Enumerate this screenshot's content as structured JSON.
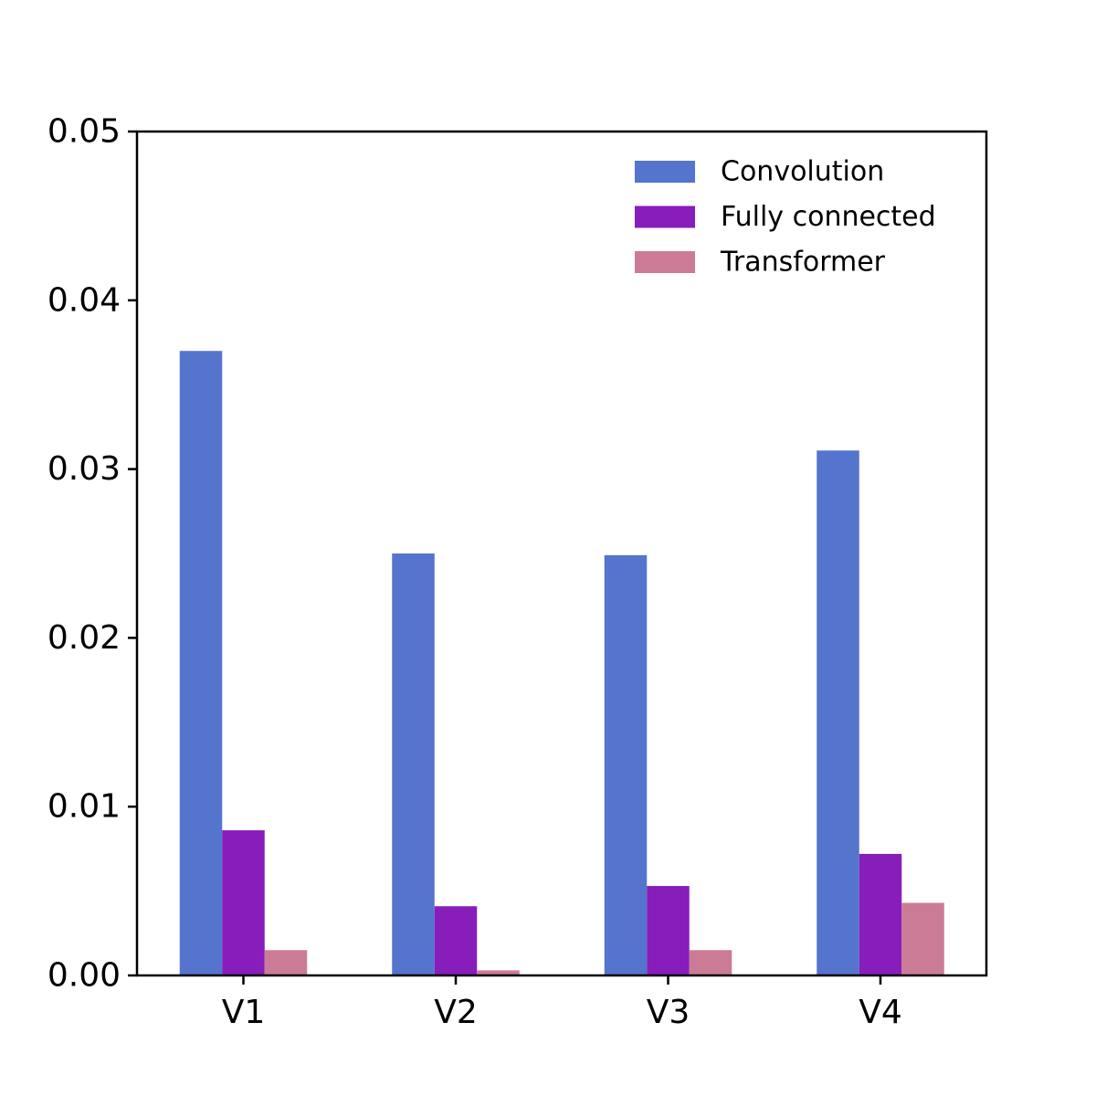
{
  "chart_data": {
    "type": "bar",
    "title": "",
    "xlabel": "",
    "ylabel": "",
    "categories": [
      "V1",
      "V2",
      "V3",
      "V4"
    ],
    "ylim": [
      0,
      0.05
    ],
    "yticks": [
      "0.00",
      "0.01",
      "0.02",
      "0.03",
      "0.04",
      "0.05"
    ],
    "grid": false,
    "legend_position": "top-right",
    "series": [
      {
        "name": "Convolution",
        "color": "#5574cd",
        "values": [
          0.037,
          0.025,
          0.0249,
          0.0311
        ]
      },
      {
        "name": "Fully connected",
        "color": "#871dbb",
        "values": [
          0.0086,
          0.0041,
          0.0053,
          0.0072
        ]
      },
      {
        "name": "Transformer",
        "color": "#cc7b96",
        "values": [
          0.0015,
          0.0003,
          0.0015,
          0.0043
        ]
      }
    ]
  }
}
